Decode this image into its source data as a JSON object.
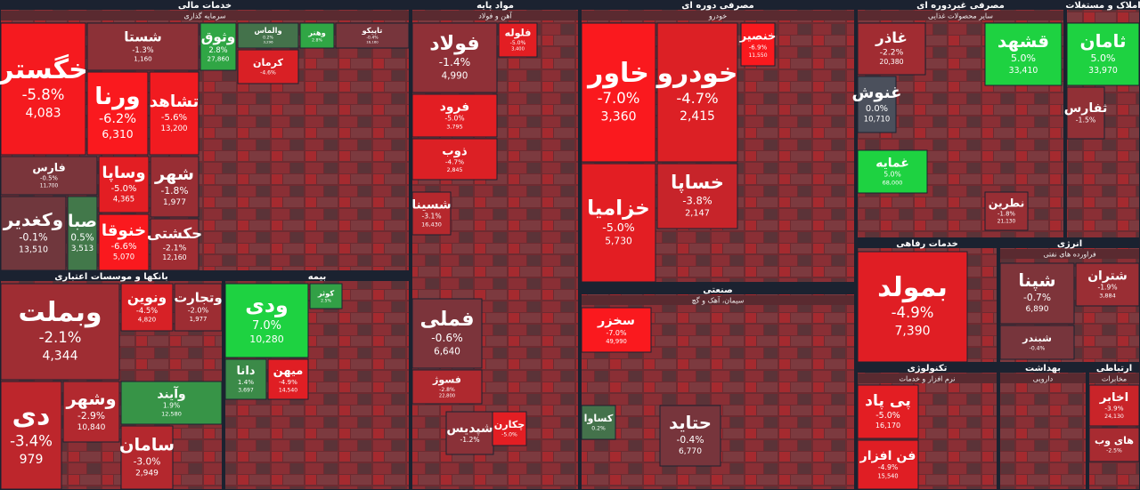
{
  "chart_data": {
    "type": "treemap",
    "sectors": [
      {
        "name": "خدمات مالی",
        "subtitle": "سرمایه گذاری",
        "tiles": [
          {
            "name": "خگستر",
            "change": -5.8,
            "change_label": "-5.8%",
            "value": 4083,
            "value_label": "4,083"
          },
          {
            "name": "شستا",
            "change": -1.3,
            "change_label": "-1.3%",
            "value": 1160,
            "value_label": "1,160"
          },
          {
            "name": "ورنا",
            "change": -6.2,
            "change_label": "-6.2%",
            "value": 6310,
            "value_label": "6,310"
          },
          {
            "name": "تشاهد",
            "change": -5.6,
            "change_label": "-5.6%",
            "value": 13200,
            "value_label": "13,200"
          },
          {
            "name": "فارس",
            "change": -0.5,
            "change_label": "-0.5%",
            "value": 11700,
            "value_label": "11,700"
          },
          {
            "name": "وکغدیر",
            "change": -0.1,
            "change_label": "-0.1%",
            "value": 13510,
            "value_label": "13,510"
          },
          {
            "name": "صبا",
            "change": 0.5,
            "change_label": "0.5%",
            "value": 3513,
            "value_label": "3,513"
          },
          {
            "name": "وساپا",
            "change": -5.0,
            "change_label": "-5.0%",
            "value": 4365,
            "value_label": "4,365"
          },
          {
            "name": "خنوقا",
            "change": -6.6,
            "change_label": "-6.6%",
            "value": 5070,
            "value_label": "5,070"
          },
          {
            "name": "شهر",
            "change": -1.8,
            "change_label": "-1.8%",
            "value": 1977,
            "value_label": "1,977"
          },
          {
            "name": "حکشتی",
            "change": -2.1,
            "change_label": "-2.1%",
            "value": 12160,
            "value_label": "12,160"
          },
          {
            "name": "وثوق",
            "change": 2.8,
            "change_label": "2.8%",
            "value": 27860,
            "value_label": "27,860"
          },
          {
            "name": "والماس",
            "change": 0.2,
            "change_label": "0.2%",
            "value": 3296,
            "value_label": "3,296"
          },
          {
            "name": "وهنر",
            "change": 2.8,
            "change_label": "2.8%"
          },
          {
            "name": "تاپیکو",
            "change": -0.4,
            "change_label": "-0.4%",
            "value": 16160,
            "value_label": "16,160"
          },
          {
            "name": "کرمان",
            "change": -4.6,
            "change_label": "-4.6%"
          }
        ]
      },
      {
        "name": "مواد پایه",
        "subtitle": "آهن و فولاد",
        "tiles": [
          {
            "name": "فولاد",
            "change": -1.4,
            "change_label": "-1.4%",
            "value": 4990,
            "value_label": "4,990"
          },
          {
            "name": "فلوله",
            "change": -5.0,
            "change_label": "-5.0%",
            "value": 3400,
            "value_label": "3,400"
          },
          {
            "name": "فرود",
            "change": -5.0,
            "change_label": "-5.0%",
            "value": 3795,
            "value_label": "3,795"
          },
          {
            "name": "ذوب",
            "change": -4.7,
            "change_label": "-4.7%",
            "value": 2845,
            "value_label": "2,845"
          },
          {
            "name": "شسینا",
            "change": -3.1,
            "change_label": "-3.1%",
            "value": 16430,
            "value_label": "16,430"
          },
          {
            "name": "فملی",
            "change": -0.6,
            "change_label": "-0.6%",
            "value": 6640,
            "value_label": "6,640"
          },
          {
            "name": "فسوژ",
            "change": -2.8,
            "change_label": "-2.8%",
            "value": 22800,
            "value_label": "22,800"
          },
          {
            "name": "شپدیس",
            "change": -1.2,
            "change_label": "-1.2%"
          },
          {
            "name": "چکارن",
            "change": -5.0,
            "change_label": "-5.0%"
          }
        ]
      },
      {
        "name": "مصرفی دوره ای",
        "subtitle": "خودرو",
        "tiles": [
          {
            "name": "خاور",
            "change": -7.0,
            "change_label": "-7.0%",
            "value": 3360,
            "value_label": "3,360"
          },
          {
            "name": "خودرو",
            "change": -4.7,
            "change_label": "-4.7%",
            "value": 2415,
            "value_label": "2,415"
          },
          {
            "name": "خزامیا",
            "change": -5.0,
            "change_label": "-5.0%",
            "value": 5730,
            "value_label": "5,730"
          },
          {
            "name": "خساپا",
            "change": -3.8,
            "change_label": "-3.8%",
            "value": 2147,
            "value_label": "2,147"
          },
          {
            "name": "خنصیر",
            "change": -6.9,
            "change_label": "-6.9%",
            "value": 11550,
            "value_label": "11,550"
          }
        ]
      },
      {
        "name": "مصرفی غیردوره ای",
        "subtitle": "سایر محصولات غذایی",
        "tiles": [
          {
            "name": "غاذر",
            "change": -2.2,
            "change_label": "-2.2%",
            "value": 20380,
            "value_label": "20,380"
          },
          {
            "name": "قشهد",
            "change": 5.0,
            "change_label": "5.0%",
            "value": 33410,
            "value_label": "33,410"
          },
          {
            "name": "غنوش",
            "change": 0.0,
            "change_label": "0.0%",
            "value": 10710,
            "value_label": "10,710"
          },
          {
            "name": "غمایه",
            "change": 5.0,
            "change_label": "5.0%",
            "value": 68000,
            "value_label": "68,000"
          },
          {
            "name": "نطرین",
            "change": -1.8,
            "change_label": "-1.8%",
            "value": 21130,
            "value_label": "21,130"
          }
        ]
      },
      {
        "name": "املاک و مستغلات",
        "tiles": [
          {
            "name": "ثامان",
            "change": 5.0,
            "change_label": "5.0%",
            "value": 33970,
            "value_label": "33,970"
          },
          {
            "name": "ثفارس",
            "change": -1.5,
            "change_label": "-1.5%"
          }
        ]
      },
      {
        "name": "بانکها و موسسات اعتباری",
        "tiles": [
          {
            "name": "وبملت",
            "change": -2.1,
            "change_label": "-2.1%",
            "value": 4344,
            "value_label": "4,344"
          },
          {
            "name": "ونوین",
            "change": -4.5,
            "change_label": "-4.5%",
            "value": 4820,
            "value_label": "4,820"
          },
          {
            "name": "وتجارت",
            "change": -2.0,
            "change_label": "-2.0%",
            "value": 1977,
            "value_label": "1,977"
          },
          {
            "name": "دی",
            "change": -3.4,
            "change_label": "-3.4%",
            "value": 979
          },
          {
            "name": "وشهر",
            "change": -2.9,
            "change_label": "-2.9%",
            "value": 10840,
            "value_label": "10,840"
          },
          {
            "name": "وآیند",
            "change": 1.9,
            "change_label": "1.9%",
            "value": 12580,
            "value_label": "12,580"
          },
          {
            "name": "سامان",
            "change": -3.0,
            "change_label": "-3.0%",
            "value": 2949,
            "value_label": "2,949"
          }
        ]
      },
      {
        "name": "بیمه",
        "tiles": [
          {
            "name": "ودی",
            "change": 7.0,
            "change_label": "7.0%",
            "value": 10280,
            "value_label": "10,280"
          },
          {
            "name": "کوثر",
            "change": 2.5,
            "change_label": "2.5%"
          },
          {
            "name": "دانا",
            "change": 1.4,
            "change_label": "1.4%",
            "value": 3697,
            "value_label": "3,697"
          },
          {
            "name": "میهن",
            "change": -4.9,
            "change_label": "-4.9%",
            "value": 14540,
            "value_label": "14,540"
          }
        ]
      },
      {
        "name": "صنعتی",
        "subtitle": "سیمان، آهک و گچ",
        "tiles": [
          {
            "name": "سخزر",
            "change": -7.0,
            "change_label": "-7.0%",
            "value": 49990,
            "value_label": "49,990"
          },
          {
            "name": "کساوا",
            "change": 0.2,
            "change_label": "0.2%"
          },
          {
            "name": "حتاید",
            "change": -0.4,
            "change_label": "-0.4%",
            "value": 6770,
            "value_label": "6,770"
          }
        ]
      },
      {
        "name": "خدمات رفاهی",
        "tiles": [
          {
            "name": "بمولد",
            "change": -4.9,
            "change_label": "-4.9%",
            "value": 7390,
            "value_label": "7,390"
          }
        ]
      },
      {
        "name": "انرژی",
        "subtitle": "فراورده های نفتی",
        "tiles": [
          {
            "name": "شپنا",
            "change": -0.7,
            "change_label": "-0.7%",
            "value": 6890,
            "value_label": "6,890"
          },
          {
            "name": "شتران",
            "change": -1.9,
            "change_label": "-1.9%",
            "value": 3884,
            "value_label": "3,884"
          },
          {
            "name": "شبندر",
            "change": -0.4,
            "change_label": "-0.4%"
          }
        ]
      },
      {
        "name": "تکنولوژی",
        "subtitle": "نرم افزار و خدمات",
        "tiles": [
          {
            "name": "پی پاد",
            "change": -5.0,
            "change_label": "-5.0%",
            "value": 16170,
            "value_label": "16,170"
          },
          {
            "name": "فن افزار",
            "change": -4.9,
            "change_label": "-4.9%",
            "value": 15540,
            "value_label": "15,540"
          }
        ]
      },
      {
        "name": "بهداشت",
        "subtitle": "دارویی",
        "tiles": []
      },
      {
        "name": "ارتباطی",
        "subtitle": "مخابرات",
        "tiles": [
          {
            "name": "اخابر",
            "change": -3.9,
            "change_label": "-3.9%",
            "value": 24130,
            "value_label": "24,130"
          },
          {
            "name": "های وب",
            "change": -2.5,
            "change_label": "-2.5%"
          }
        ]
      }
    ]
  }
}
